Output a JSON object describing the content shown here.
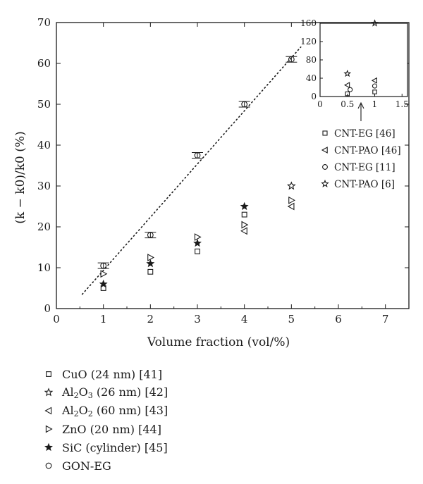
{
  "chart_data": [
    {
      "type": "scatter",
      "ylabel": "(k − k0)/k0 (%)",
      "xlabel": "Volume fraction (vol/%)",
      "xlim": [
        0,
        7.5
      ],
      "ylim": [
        0,
        70
      ],
      "xticks": [
        "0",
        "1",
        "2",
        "3",
        "4",
        "5",
        "6",
        "7"
      ],
      "yticks": [
        "0",
        "10",
        "20",
        "30",
        "40",
        "50",
        "60",
        "70"
      ],
      "grid": false,
      "trendline": {
        "style": "dotted",
        "x": [
          0.55,
          5.2
        ],
        "y": [
          3.5,
          64
        ]
      },
      "series": [
        {
          "name": "CuO (24 nm) [41]",
          "marker": "square",
          "x": [
            1,
            2,
            3,
            4
          ],
          "y": [
            5,
            9,
            14,
            23
          ]
        },
        {
          "name": "Al2O3 (26 nm) [42]",
          "marker": "star-open",
          "x": [
            5
          ],
          "y": [
            30
          ]
        },
        {
          "name": "Al2O2 (60 nm) [43]",
          "marker": "triangle-left",
          "x": [
            4,
            5
          ],
          "y": [
            19,
            25
          ]
        },
        {
          "name": "ZnO (20 nm) [44]",
          "marker": "triangle-right",
          "x": [
            1,
            2,
            3,
            4,
            5
          ],
          "y": [
            8.5,
            12.5,
            17.5,
            20.5,
            26.5
          ]
        },
        {
          "name": "SiC (cylinder) [45]",
          "marker": "star-filled",
          "x": [
            1,
            2,
            3,
            4
          ],
          "y": [
            6,
            11,
            16,
            25
          ]
        },
        {
          "name": "GON-EG",
          "marker": "circle",
          "x": [
            1,
            2,
            3,
            4,
            5
          ],
          "y": [
            10.5,
            18,
            37.5,
            50,
            61
          ]
        }
      ]
    },
    {
      "type": "scatter",
      "xlim": [
        0,
        1.6
      ],
      "ylim": [
        0,
        160
      ],
      "xticks": [
        "0",
        "0.5",
        "1",
        "1.5"
      ],
      "yticks": [
        "0",
        "40",
        "80",
        "120",
        "160"
      ],
      "series": [
        {
          "name": "CNT-EG [46]",
          "marker": "square",
          "x": [
            0.5,
            1
          ],
          "y": [
            6,
            10
          ]
        },
        {
          "name": "CNT-PAO [46]",
          "marker": "triangle-left",
          "x": [
            0.5,
            1
          ],
          "y": [
            25,
            35
          ]
        },
        {
          "name": "CNT-EG [11]",
          "marker": "circle",
          "x": [
            0.55,
            1
          ],
          "y": [
            15,
            23
          ]
        },
        {
          "name": "CNT-PAO [6]",
          "marker": "star-open",
          "x": [
            0.5,
            1
          ],
          "y": [
            50,
            160
          ]
        }
      ]
    }
  ],
  "legend": {
    "items": [
      {
        "pre": "CuO (24 nm) [41]",
        "sub": "",
        "post": ""
      },
      {
        "pre": "Al",
        "sub": "2",
        "mid": "O",
        "sub2": "3",
        "post": " (26 nm) [42]"
      },
      {
        "pre": "Al",
        "sub": "2",
        "mid": "O",
        "sub2": "2",
        "post": " (60 nm) [43]"
      },
      {
        "pre": "ZnO (20 nm) [44]",
        "sub": "",
        "post": ""
      },
      {
        "pre": "SiC (cylinder) [45]",
        "sub": "",
        "post": ""
      },
      {
        "pre": "GON-EG",
        "sub": "",
        "post": ""
      }
    ]
  }
}
